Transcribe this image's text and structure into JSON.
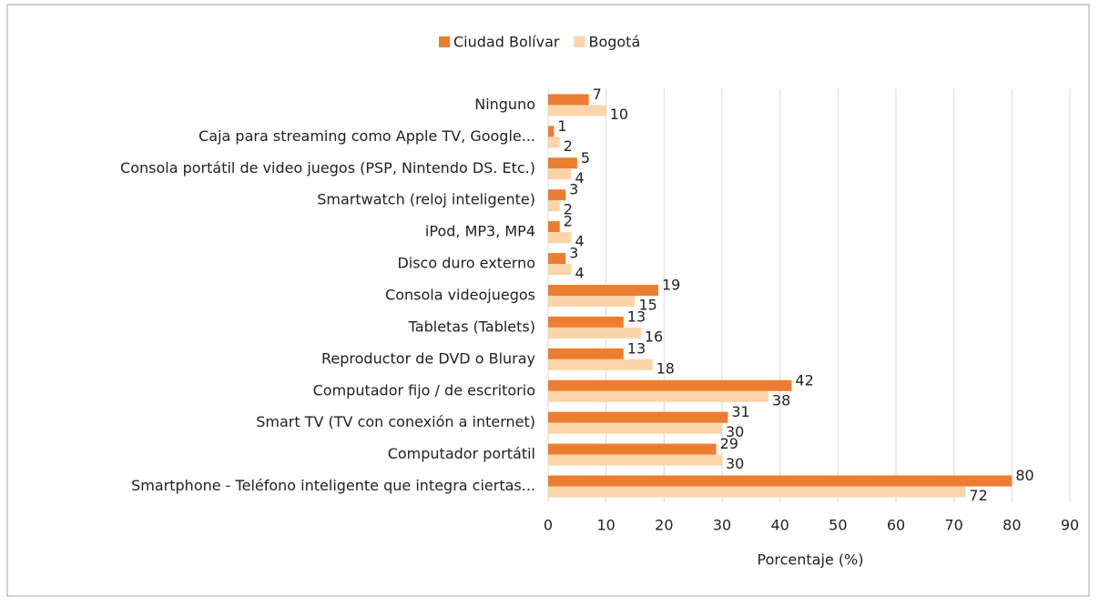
{
  "chart_data": {
    "type": "hbar",
    "categories": [
      "Ninguno",
      "Caja para streaming como Apple TV, Google...",
      "Consola portátil de video juegos (PSP, Nintendo DS. Etc.)",
      "Smartwatch (reloj inteligente)",
      "iPod, MP3, MP4",
      "Disco duro externo",
      "Consola videojuegos",
      "Tabletas (Tablets)",
      "Reproductor de DVD o Bluray",
      "Computador fijo / de escritorio",
      "Smart TV (TV con conexión a internet)",
      "Computador portátil",
      "Smartphone - Teléfono inteligente que integra ciertas..."
    ],
    "series": [
      {
        "name": "Ciudad Bolívar",
        "color": "#ed7d31",
        "values": [
          7,
          1,
          5,
          3,
          2,
          3,
          19,
          13,
          13,
          42,
          31,
          29,
          80
        ]
      },
      {
        "name": "Bogotá",
        "color": "#fbd4a8",
        "values": [
          10,
          2,
          4,
          2,
          4,
          4,
          15,
          16,
          18,
          38,
          30,
          30,
          72
        ]
      }
    ],
    "xlabel": "Porcentaje (%)",
    "xlim": [
      0,
      90
    ],
    "xticks": [
      0,
      10,
      20,
      30,
      40,
      50,
      60,
      70,
      80,
      90
    ],
    "grid": true,
    "legend": "top"
  }
}
